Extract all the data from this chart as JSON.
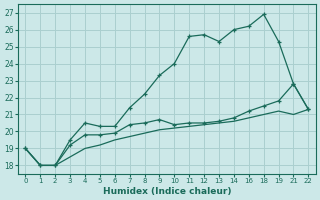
{
  "xlabel": "Humidex (Indice chaleur)",
  "bg_color": "#cce8e8",
  "grid_color": "#aacfcf",
  "line_color": "#1a6b5a",
  "ylim": [
    17.5,
    27.5
  ],
  "yticks": [
    18,
    19,
    20,
    21,
    22,
    23,
    24,
    25,
    26,
    27
  ],
  "xtick_positions": [
    0,
    1,
    2,
    3,
    4,
    5,
    6,
    7,
    8,
    9,
    10,
    11,
    12,
    13,
    14,
    15,
    16,
    17,
    18,
    19
  ],
  "xtick_labels": [
    "0",
    "1",
    "2",
    "3",
    "4",
    "5",
    "6",
    "7",
    "8",
    "9",
    "10",
    "11",
    "12",
    "13",
    "14",
    "16",
    "18",
    "19",
    "21",
    "22"
  ],
  "series1_x": [
    0,
    1,
    2,
    3,
    4,
    5,
    6,
    7,
    8,
    9,
    10,
    11,
    12,
    13,
    14,
    15,
    16,
    17,
    18,
    19
  ],
  "series1_y": [
    19.0,
    18.0,
    18.0,
    19.5,
    20.5,
    20.3,
    20.3,
    21.4,
    22.2,
    23.3,
    24.0,
    25.6,
    25.7,
    25.3,
    26.0,
    26.2,
    26.9,
    25.3,
    22.8,
    21.3
  ],
  "series2_x": [
    0,
    1,
    2,
    3,
    4,
    5,
    6,
    7,
    8,
    9,
    10,
    11,
    12,
    13,
    14,
    15,
    16,
    17,
    18,
    19
  ],
  "series2_y": [
    19.0,
    18.0,
    18.0,
    19.2,
    19.8,
    19.8,
    19.9,
    20.4,
    20.5,
    20.7,
    20.4,
    20.5,
    20.5,
    20.6,
    20.8,
    21.2,
    21.5,
    21.8,
    22.8,
    21.3
  ],
  "series3_x": [
    0,
    1,
    2,
    3,
    4,
    5,
    6,
    7,
    8,
    9,
    10,
    11,
    12,
    13,
    14,
    15,
    16,
    17,
    18,
    19
  ],
  "series3_y": [
    19.0,
    18.0,
    18.0,
    18.5,
    19.0,
    19.2,
    19.5,
    19.7,
    19.9,
    20.1,
    20.2,
    20.3,
    20.4,
    20.5,
    20.6,
    20.8,
    21.0,
    21.2,
    21.0,
    21.3
  ]
}
